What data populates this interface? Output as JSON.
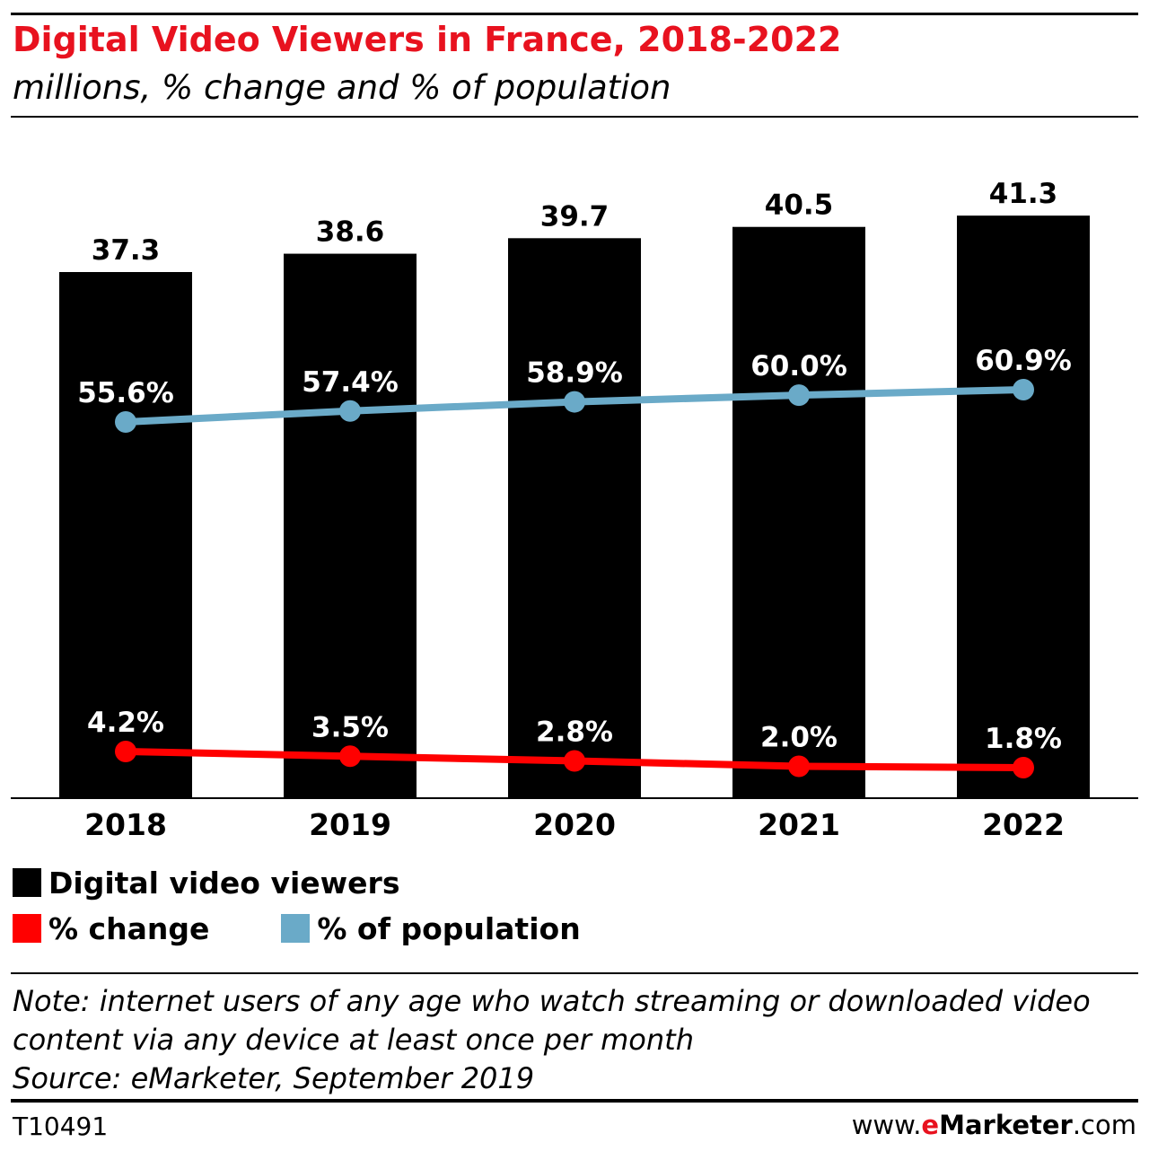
{
  "title": "Digital Video Viewers in France, 2018-2022",
  "subtitle": "millions, % change and % of population",
  "legend": {
    "viewers": "Digital video viewers",
    "change": "% change",
    "population": "% of population"
  },
  "colors": {
    "bar": "#000000",
    "change": "#ff0000",
    "population": "#6aaac8",
    "title": "#e8121f"
  },
  "note": {
    "line1": "Note: internet users of any age who watch streaming or downloaded video",
    "line2": "content via any device at least once per month",
    "source": "Source: eMarketer, September 2019"
  },
  "footer": {
    "id": "T10491",
    "brand_prefix": "www.",
    "brand_e": "e",
    "brand_name": "Marketer",
    "brand_suffix": ".com"
  },
  "chart_data": {
    "type": "bar",
    "categories": [
      "2018",
      "2019",
      "2020",
      "2021",
      "2022"
    ],
    "series": [
      {
        "name": "Digital video viewers",
        "type": "bar",
        "values": [
          37.3,
          38.6,
          39.7,
          40.5,
          41.3
        ],
        "labels": [
          "37.3",
          "38.6",
          "39.7",
          "40.5",
          "41.3"
        ]
      },
      {
        "name": "% of population",
        "type": "line",
        "values": [
          55.6,
          57.4,
          58.9,
          60.0,
          60.9
        ],
        "labels": [
          "55.6%",
          "57.4%",
          "58.9%",
          "60.0%",
          "60.9%"
        ]
      },
      {
        "name": "% change",
        "type": "line",
        "values": [
          4.2,
          3.5,
          2.8,
          2.0,
          1.8
        ],
        "labels": [
          "4.2%",
          "3.5%",
          "2.8%",
          "2.0%",
          "1.8%"
        ]
      }
    ],
    "grid": false,
    "legend_position": "bottom-left"
  }
}
